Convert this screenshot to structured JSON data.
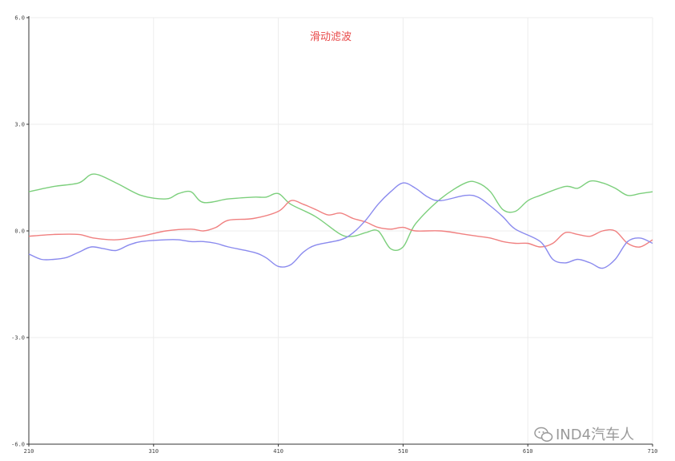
{
  "chart_data": {
    "type": "line",
    "title": "滑动滤波",
    "xlabel": "",
    "ylabel": "",
    "xlim": [
      210,
      710
    ],
    "ylim": [
      -6.0,
      6.0
    ],
    "x_ticks": [
      210,
      310,
      410,
      510,
      610,
      710
    ],
    "x_tick_labels": [
      "210",
      "310",
      "410",
      "510",
      "610",
      "710"
    ],
    "y_ticks": [
      6.0,
      3.0,
      0.0,
      -3.0,
      -6.0
    ],
    "y_tick_labels": [
      "6.0",
      "3.0",
      "0.0",
      "-3.0",
      "-6.0"
    ],
    "grid": true,
    "series": [
      {
        "color": "#7ccf7c",
        "x": [
          210,
          230,
          250,
          262,
          280,
          300,
          320,
          330,
          340,
          350,
          370,
          390,
          400,
          410,
          420,
          440,
          460,
          470,
          480,
          490,
          500,
          510,
          520,
          540,
          560,
          570,
          580,
          590,
          600,
          610,
          620,
          640,
          650,
          660,
          670,
          680,
          690,
          700,
          710
        ],
        "y": [
          1.1,
          1.25,
          1.35,
          1.6,
          1.35,
          1.0,
          0.9,
          1.05,
          1.1,
          0.8,
          0.9,
          0.95,
          0.95,
          1.05,
          0.75,
          0.4,
          -0.1,
          -0.15,
          -0.05,
          0.0,
          -0.5,
          -0.45,
          0.2,
          0.9,
          1.35,
          1.35,
          1.1,
          0.6,
          0.55,
          0.85,
          1.0,
          1.25,
          1.2,
          1.4,
          1.35,
          1.2,
          1.0,
          1.05,
          1.1
        ]
      },
      {
        "color": "#f08080",
        "x": [
          210,
          230,
          250,
          262,
          280,
          300,
          320,
          340,
          350,
          360,
          370,
          390,
          410,
          420,
          430,
          440,
          450,
          460,
          470,
          480,
          490,
          500,
          510,
          520,
          540,
          560,
          570,
          580,
          590,
          600,
          610,
          620,
          630,
          640,
          650,
          660,
          670,
          680,
          690,
          700,
          710
        ],
        "y": [
          -0.15,
          -0.1,
          -0.1,
          -0.2,
          -0.25,
          -0.15,
          0.0,
          0.05,
          0.0,
          0.1,
          0.3,
          0.35,
          0.55,
          0.85,
          0.75,
          0.6,
          0.45,
          0.5,
          0.35,
          0.25,
          0.1,
          0.05,
          0.1,
          0.0,
          0.0,
          -0.1,
          -0.15,
          -0.2,
          -0.3,
          -0.35,
          -0.35,
          -0.45,
          -0.35,
          -0.05,
          -0.1,
          -0.15,
          0.0,
          0.0,
          -0.35,
          -0.45,
          -0.25
        ]
      },
      {
        "color": "#8a8aee",
        "x": [
          210,
          220,
          230,
          240,
          250,
          260,
          270,
          280,
          290,
          300,
          320,
          330,
          340,
          350,
          360,
          370,
          390,
          400,
          410,
          420,
          430,
          440,
          460,
          470,
          480,
          490,
          500,
          510,
          520,
          530,
          540,
          560,
          570,
          580,
          590,
          600,
          620,
          630,
          640,
          650,
          660,
          670,
          680,
          690,
          700,
          710
        ],
        "y": [
          -0.65,
          -0.8,
          -0.8,
          -0.75,
          -0.6,
          -0.45,
          -0.5,
          -0.55,
          -0.4,
          -0.3,
          -0.25,
          -0.25,
          -0.3,
          -0.3,
          -0.35,
          -0.45,
          -0.6,
          -0.75,
          -1.0,
          -0.95,
          -0.6,
          -0.4,
          -0.25,
          -0.05,
          0.3,
          0.75,
          1.1,
          1.35,
          1.2,
          0.95,
          0.85,
          1.0,
          0.95,
          0.7,
          0.4,
          0.05,
          -0.3,
          -0.8,
          -0.9,
          -0.8,
          -0.9,
          -1.05,
          -0.8,
          -0.3,
          -0.2,
          -0.35
        ]
      }
    ]
  },
  "watermark": {
    "text": "IND4汽车人",
    "icon": "wechat-icon"
  }
}
